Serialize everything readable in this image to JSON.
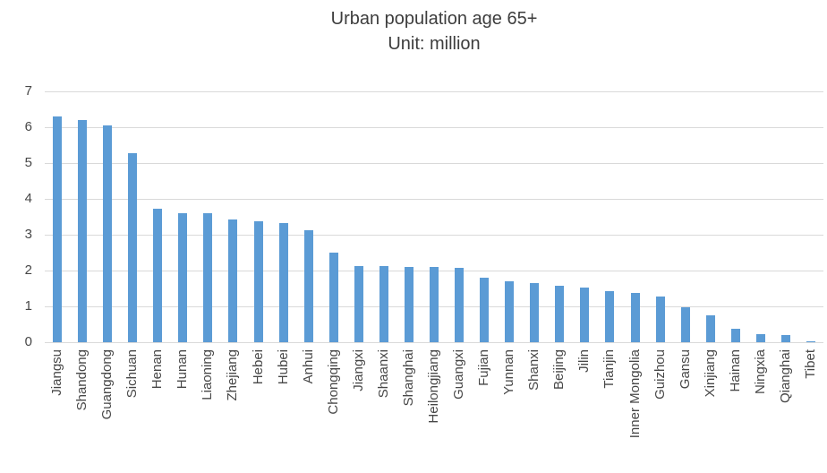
{
  "chart_data": {
    "type": "bar",
    "title": "Urban population age 65+",
    "subtitle": "Unit: million",
    "categories": [
      "Jiangsu",
      "Shandong",
      "Guangdong",
      "Sichuan",
      "Henan",
      "Hunan",
      "Liaoning",
      "Zhejiang",
      "Hebei",
      "Hubei",
      "Anhui",
      "Chongqing",
      "Jiangxi",
      "Shaanxi",
      "Shanghai",
      "Heilongjiang",
      "Guangxi",
      "Fujian",
      "Yunnan",
      "Shanxi",
      "Beijing",
      "Jilin",
      "Tianjin",
      "Inner Mongolia",
      "Guizhou",
      "Gansu",
      "Xinjiang",
      "Hainan",
      "Ningxia",
      "Qianghai",
      "Tibet"
    ],
    "values": [
      6.3,
      6.2,
      6.05,
      5.27,
      3.73,
      3.6,
      3.6,
      3.43,
      3.38,
      3.33,
      3.13,
      2.5,
      2.13,
      2.12,
      2.11,
      2.11,
      2.08,
      1.79,
      1.71,
      1.64,
      1.58,
      1.52,
      1.43,
      1.38,
      1.27,
      0.98,
      0.75,
      0.38,
      0.23,
      0.2,
      0.02
    ],
    "xlabel": "",
    "ylabel": "",
    "ylim": [
      0,
      7
    ],
    "ytick_interval": 1,
    "yticks": [
      "0",
      "1",
      "2",
      "3",
      "4",
      "5",
      "6",
      "7"
    ],
    "grid": "horizontal",
    "legend": "none",
    "x_label_rotation": -90,
    "bar_color": "#5b9bd5",
    "gridline_color": "#d9d9d9",
    "axis_label_color": "#474747",
    "title_color": "#3d3d3d"
  }
}
